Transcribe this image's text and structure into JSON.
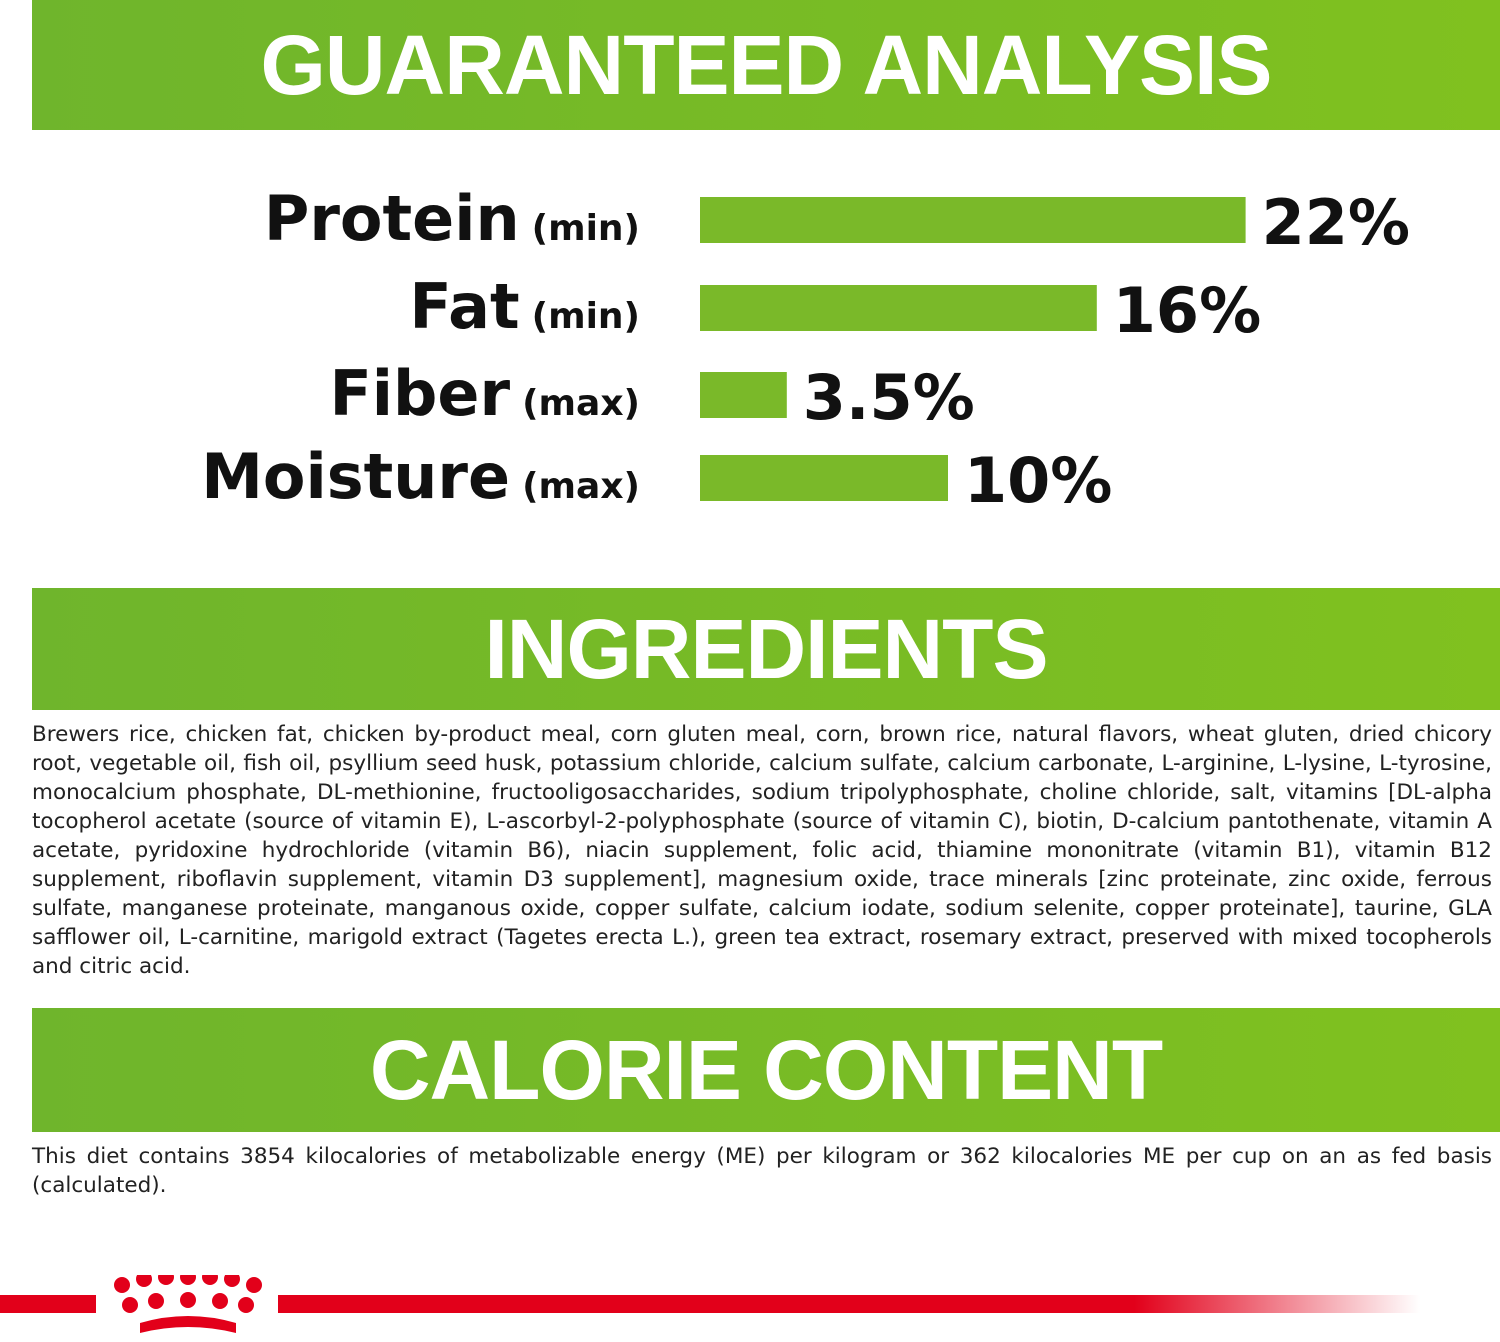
{
  "header": {
    "title": "GUARANTEED ANALYSIS"
  },
  "chart_data": {
    "type": "bar",
    "orientation": "horizontal",
    "categories": [
      "Protein",
      "Fat",
      "Fiber",
      "Moisture"
    ],
    "qualifiers": [
      "(min)",
      "(min)",
      "(max)",
      "(max)"
    ],
    "values": [
      22,
      16,
      3.5,
      10
    ],
    "value_labels": [
      "22%",
      "16%",
      "3.5%",
      "10%"
    ],
    "color": "#7ab929"
  },
  "ingredients": {
    "title": "INGREDIENTS",
    "text": "Brewers rice, chicken fat, chicken by-product meal, corn gluten meal, corn, brown rice, natural flavors, wheat gluten, dried chicory root, vegetable oil, fish oil, psyllium seed husk, potassium chloride, calcium sulfate, calcium carbonate, L-arginine, L-lysine, L-tyrosine, monocalcium phosphate, DL-methionine, fructooligosaccharides, sodium tripolyphosphate, choline chloride, salt, vitamins [DL-alpha tocopherol acetate (source of vitamin E), L-ascorbyl-2-polyphosphate (source of vitamin C), biotin, D-calcium pantothenate, vitamin A acetate, pyridoxine hydrochloride (vitamin B6), niacin supplement, folic acid, thiamine mononitrate (vitamin B1), vitamin B12 supplement, riboflavin supplement, vitamin D3 supplement], magnesium oxide, trace minerals [zinc proteinate, zinc oxide, ferrous sulfate, manganese proteinate, manganous oxide, copper sulfate, calcium iodate, sodium selenite, copper proteinate], taurine, GLA safflower oil, L-carnitine, marigold extract (Tagetes erecta L.), green tea extract, rosemary extract, preserved with mixed tocopherols and citric acid."
  },
  "calorie_content": {
    "title": "CALORIE CONTENT",
    "text": "This diet contains 3854 kilocalories of metabolizable energy (ME) per kilogram or 362 kilocalories ME per cup on an as fed basis (calculated)."
  }
}
